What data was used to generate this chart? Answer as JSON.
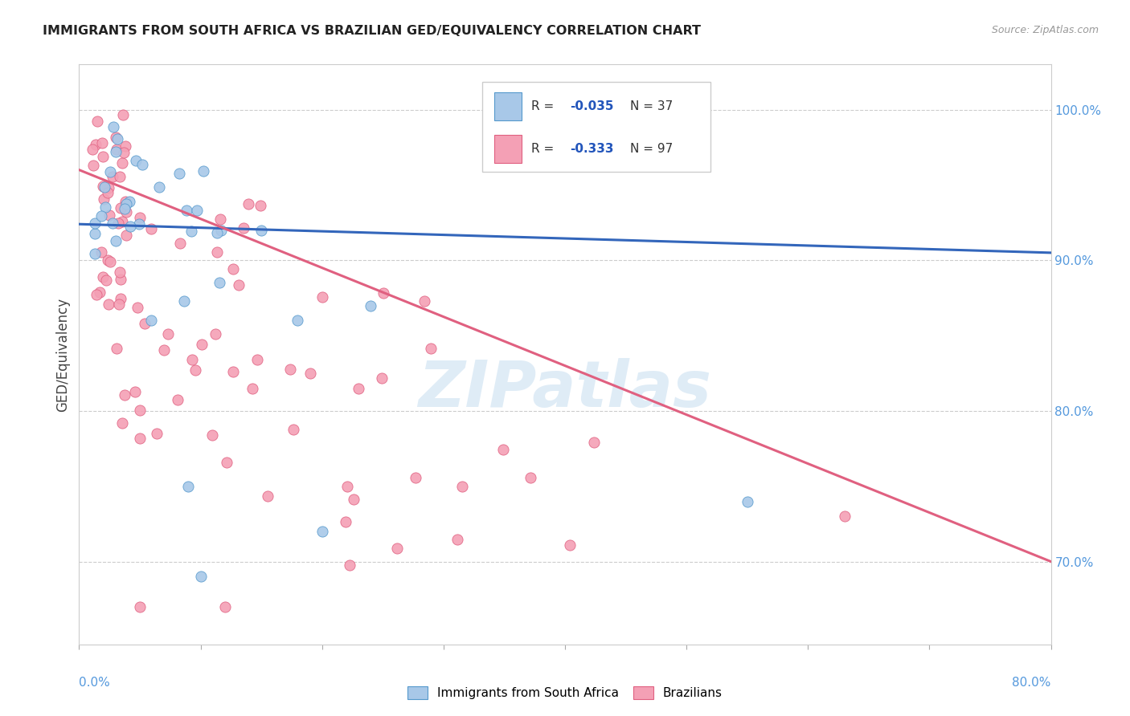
{
  "title": "IMMIGRANTS FROM SOUTH AFRICA VS BRAZILIAN GED/EQUIVALENCY CORRELATION CHART",
  "source": "Source: ZipAtlas.com",
  "ylabel": "GED/Equivalency",
  "xmin": 0.0,
  "xmax": 0.08,
  "ymin": 0.645,
  "ymax": 1.03,
  "right_yticks": [
    0.7,
    0.8,
    0.9,
    1.0
  ],
  "right_yticklabels": [
    "70.0%",
    "80.0%",
    "90.0%",
    "100.0%"
  ],
  "blue_color": "#a8c8e8",
  "blue_edge_color": "#5599cc",
  "blue_line_color": "#3366bb",
  "pink_color": "#f4a0b5",
  "pink_edge_color": "#e06080",
  "pink_line_color": "#e06080",
  "watermark": "ZIPatlas",
  "blue_r": "-0.035",
  "blue_n": "37",
  "pink_r": "-0.333",
  "pink_n": "97",
  "blue_line_x0": 0.0,
  "blue_line_y0": 0.924,
  "blue_line_x1": 0.08,
  "blue_line_y1": 0.905,
  "pink_line_x0": 0.0,
  "pink_line_y0": 0.96,
  "pink_line_x1": 0.08,
  "pink_line_y1": 0.7
}
